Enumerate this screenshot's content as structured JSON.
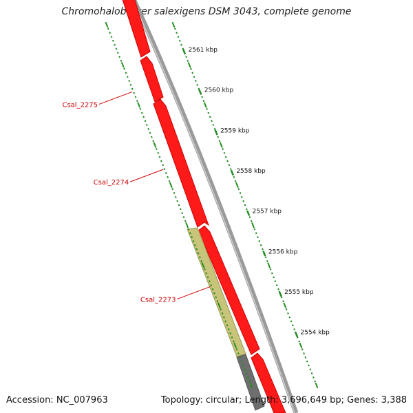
{
  "map": {
    "title": "Chromohalobacter salexigens DSM 3043, complete genome",
    "accession_text": "Accession: NC_007963",
    "summary_text": "Topology: circular; Length: 3,696,649 bp; Genes: 3,388",
    "kbp_ticks": [
      {
        "label": "2561 kbp",
        "t": 0.0746
      },
      {
        "label": "2560 kbp",
        "t": 0.1865
      },
      {
        "label": "2559 kbp",
        "t": 0.2984
      },
      {
        "label": "2558 kbp",
        "t": 0.4103
      },
      {
        "label": "2557 kbp",
        "t": 0.5222
      },
      {
        "label": "2556 kbp",
        "t": 0.6341
      },
      {
        "label": "2555 kbp",
        "t": 0.746
      },
      {
        "label": "2554 kbp",
        "t": 0.8579
      }
    ],
    "genes": [
      {
        "label": "Csal_2275",
        "label_t": 0.186,
        "strand": "forward"
      },
      {
        "label": "Csal_2274",
        "label_t": 0.401,
        "strand": "forward"
      },
      {
        "label": "Csal_2273",
        "label_t": 0.726,
        "strand": "reverse"
      }
    ],
    "colors": {
      "forward_cds": "#ff1a1a",
      "forward_cds_dark": "#cc0000",
      "reverse_cds": "#c8c47a",
      "reverse_cds_dark": "#9c9858",
      "backbone": "#888888",
      "ticks": "#228b22",
      "gene_label": "#cc0000",
      "grey_feature": "#6e6e6e"
    }
  }
}
